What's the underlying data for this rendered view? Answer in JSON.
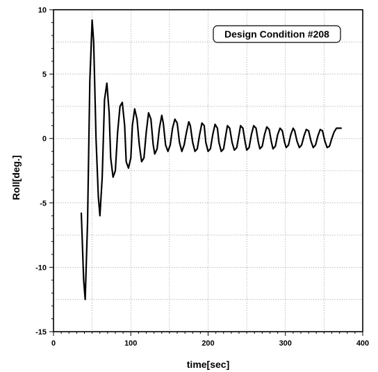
{
  "chart_data": {
    "type": "line",
    "title": "",
    "xlabel": "time[sec]",
    "ylabel": "Roll[deg.]",
    "xlim": [
      0,
      400
    ],
    "ylim": [
      -15,
      10
    ],
    "x_ticks": [
      0,
      100,
      200,
      300,
      400
    ],
    "y_ticks": [
      -15,
      -10,
      -5,
      0,
      5,
      10
    ],
    "x_tick_labels": [
      "0",
      "100",
      "200",
      "300",
      "400"
    ],
    "y_tick_labels": [
      "-15",
      "-10",
      "-5",
      "0",
      "5",
      "10"
    ],
    "grid": true,
    "annotation": "Design Condition #208",
    "line_color": "#000000",
    "series": [
      {
        "x": [
          36,
          39,
          41,
          44,
          47,
          50,
          52,
          55,
          58,
          60,
          63,
          66,
          69,
          72,
          74,
          77,
          80,
          83,
          86,
          89,
          92,
          94,
          97,
          100,
          102,
          105,
          108,
          111,
          114,
          117,
          120,
          123,
          126,
          129,
          131,
          134,
          137,
          140,
          142,
          145,
          148,
          151,
          154,
          157,
          160,
          163,
          166,
          169,
          172,
          175,
          177,
          180,
          183,
          186,
          189,
          192,
          195,
          197,
          200,
          203,
          206,
          209,
          212,
          214,
          217,
          220,
          223,
          225,
          228,
          231,
          234,
          237,
          240,
          242,
          245,
          248,
          250,
          253,
          256,
          259,
          262,
          265,
          267,
          270,
          273,
          276,
          279,
          282,
          284,
          287,
          290,
          293,
          296,
          299,
          301,
          304,
          307,
          310,
          312,
          315,
          318,
          321,
          324,
          327,
          330,
          333,
          336,
          339,
          342,
          345,
          348,
          351,
          354,
          357,
          360,
          363,
          366,
          369,
          372
        ],
        "y": [
          -5.8,
          -11.0,
          -12.5,
          -6.5,
          4.5,
          9.2,
          7.5,
          0.0,
          -4.5,
          -6.0,
          -3.0,
          3.0,
          4.3,
          2.0,
          -1.5,
          -3.0,
          -2.5,
          0.5,
          2.5,
          2.8,
          1.0,
          -1.8,
          -2.3,
          -1.5,
          1.0,
          2.3,
          1.5,
          -0.5,
          -1.8,
          -1.5,
          0.5,
          2.0,
          1.5,
          -0.5,
          -1.2,
          -0.8,
          0.8,
          1.8,
          1.2,
          -0.5,
          -1.0,
          -0.5,
          0.8,
          1.5,
          1.2,
          -0.3,
          -1.0,
          -0.5,
          0.5,
          1.3,
          1.0,
          -0.3,
          -1.0,
          -0.8,
          0.3,
          1.2,
          1.0,
          -0.3,
          -1.0,
          -0.8,
          0.3,
          1.1,
          0.8,
          -0.3,
          -1.0,
          -0.8,
          0.3,
          1.0,
          0.8,
          -0.3,
          -0.9,
          -0.7,
          0.3,
          1.0,
          0.8,
          -0.3,
          -0.9,
          -0.7,
          0.3,
          1.0,
          0.8,
          -0.3,
          -0.8,
          -0.6,
          0.3,
          0.9,
          0.7,
          -0.3,
          -0.8,
          -0.6,
          0.3,
          0.8,
          0.6,
          -0.3,
          -0.7,
          -0.5,
          0.3,
          0.8,
          0.6,
          -0.2,
          -0.7,
          -0.5,
          0.2,
          0.7,
          0.6,
          -0.2,
          -0.7,
          -0.5,
          0.2,
          0.7,
          0.6,
          -0.2,
          -0.7,
          -0.6,
          0.0,
          0.5,
          0.8,
          0.8,
          0.8
        ]
      }
    ]
  }
}
